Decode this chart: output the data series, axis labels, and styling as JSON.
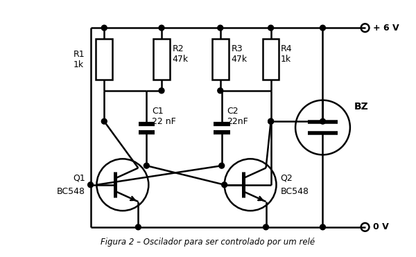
{
  "bg_color": "#ffffff",
  "title": "Figura 2 – Oscilador para ser controlado por um relé",
  "vcc_label": "+ 6 V",
  "gnd_label": "0 V",
  "r1_label": "R1\n1k",
  "r2_label": "R2\n47k",
  "r3_label": "R3\n47k",
  "r4_label": "R4\n1k",
  "c1_label": "C1\n22 nF",
  "c2_label": "C2\n22nF",
  "q1_label": "Q1",
  "q1_sub": "BC548",
  "q2_label": "Q2",
  "q2_sub": "BC548",
  "bz_label": "BZ",
  "lw": 1.8
}
